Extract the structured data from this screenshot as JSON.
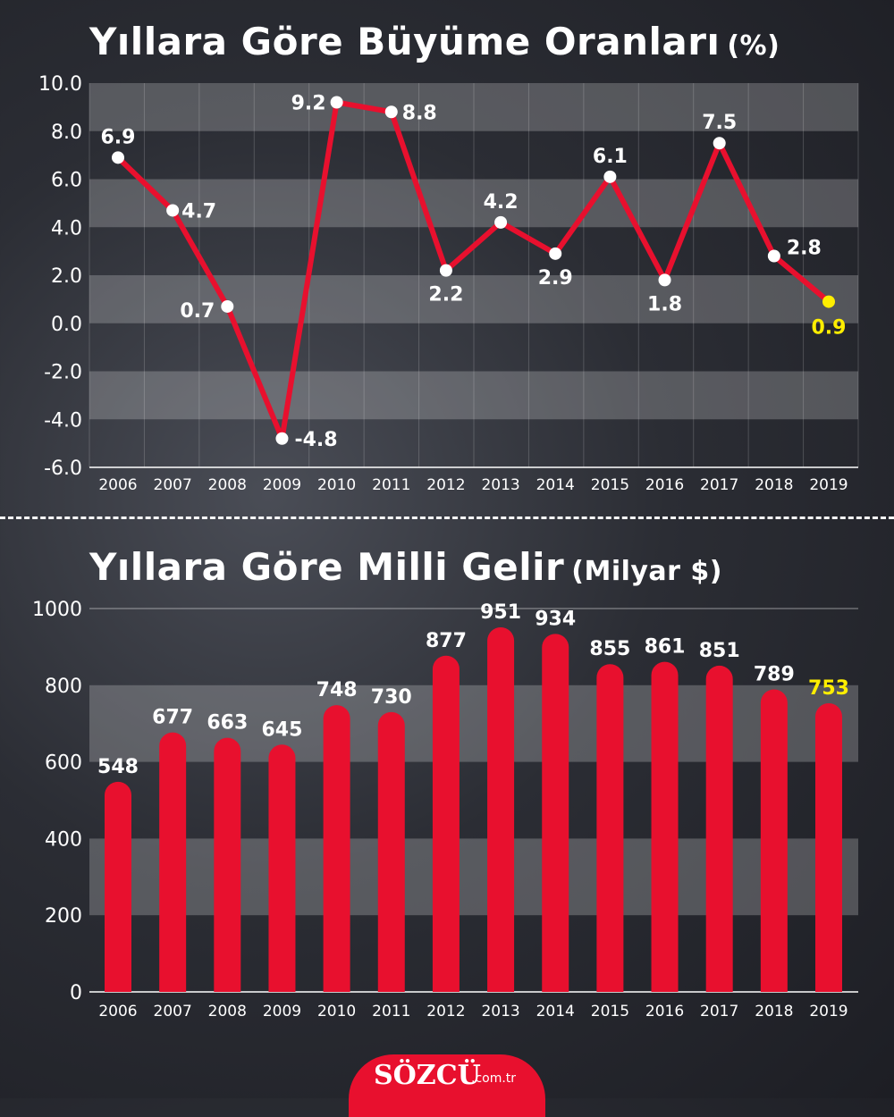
{
  "colors": {
    "accent": "#e8102e",
    "highlight": "#ffee00",
    "text": "#ffffff"
  },
  "header1": {
    "title": "Yıllara Göre Büyüme Oranları",
    "unit": "(%)"
  },
  "header2": {
    "title": "Yıllara Göre Milli Gelir",
    "unit": "(Milyar $)"
  },
  "brand": {
    "name": "SÖZCÜ",
    "domain": ".com.tr"
  },
  "chart_data": [
    {
      "type": "line",
      "title": "Yıllara Göre Büyüme Oranları (%)",
      "categories": [
        "2006",
        "2007",
        "2008",
        "2009",
        "2010",
        "2011",
        "2012",
        "2013",
        "2014",
        "2015",
        "2016",
        "2017",
        "2018",
        "2019"
      ],
      "values": [
        6.9,
        4.7,
        0.7,
        -4.8,
        9.2,
        8.8,
        2.2,
        4.2,
        2.9,
        6.1,
        1.8,
        7.5,
        2.8,
        0.9
      ],
      "labels": [
        "6.9",
        "4.7",
        "0.7",
        "-4.8",
        "9.2",
        "8.8",
        "2.2",
        "4.2",
        "2.9",
        "6.1",
        "1.8",
        "7.5",
        "2.8",
        "0.9"
      ],
      "yticks": [
        "10.0",
        "8.0",
        "6.0",
        "4.0",
        "2.0",
        "0.0",
        "-2.0",
        "-4.0",
        "-6.0"
      ],
      "ylim": [
        -6,
        10
      ],
      "highlight_last": true,
      "grid": "alternating-bands"
    },
    {
      "type": "bar",
      "title": "Yıllara Göre Milli Gelir (Milyar $)",
      "categories": [
        "2006",
        "2007",
        "2008",
        "2009",
        "2010",
        "2011",
        "2012",
        "2013",
        "2014",
        "2015",
        "2016",
        "2017",
        "2018",
        "2019"
      ],
      "values": [
        548,
        677,
        663,
        645,
        748,
        730,
        877,
        951,
        934,
        855,
        861,
        851,
        789,
        753
      ],
      "labels": [
        "548",
        "677",
        "663",
        "645",
        "748",
        "730",
        "877",
        "951",
        "934",
        "855",
        "861",
        "851",
        "789",
        "753"
      ],
      "yticks": [
        "1000",
        "800",
        "600",
        "400",
        "200",
        "0"
      ],
      "ylim": [
        0,
        1000
      ],
      "highlight_last": true,
      "grid": "alternating-bands"
    }
  ]
}
